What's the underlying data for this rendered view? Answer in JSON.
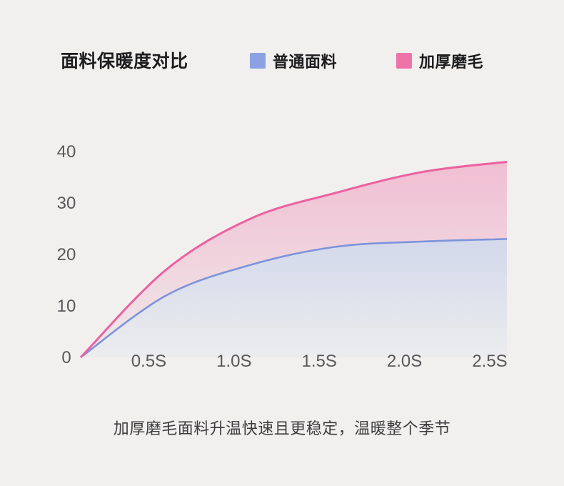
{
  "header": {
    "title": "面料保暖度对比"
  },
  "caption": "加厚磨毛面料升温快速且更稳定，温暖整个季节",
  "chart_data": {
    "type": "area",
    "title": "面料保暖度对比",
    "x": [
      0,
      0.5,
      1.0,
      1.5,
      2.0,
      2.5
    ],
    "x_tick_labels": [
      "0.5S",
      "1.0S",
      "1.5S",
      "2.0S",
      "2.5S"
    ],
    "y_ticks": [
      40,
      30,
      20,
      10,
      0
    ],
    "xlim": [
      0,
      2.5
    ],
    "ylim": [
      0,
      40
    ],
    "grid": false,
    "legend_position": "top",
    "series": [
      {
        "name": "普通面料",
        "line_color": "#7d93da",
        "swatch_color": "#8ba1e4",
        "fill_opacity_top": 0.3,
        "fill_opacity_bottom": 0.04,
        "values": [
          0,
          12,
          18,
          21.5,
          22.5,
          23
        ]
      },
      {
        "name": "加厚磨毛",
        "line_color": "#ec619f",
        "swatch_color": "#ee74a8",
        "fill_opacity_top": 0.4,
        "fill_opacity_bottom": 0.05,
        "values": [
          0,
          17,
          27,
          32,
          36,
          38
        ]
      }
    ],
    "caption": "加厚磨毛面料升温快速且更稳定，温暖整个季节"
  }
}
